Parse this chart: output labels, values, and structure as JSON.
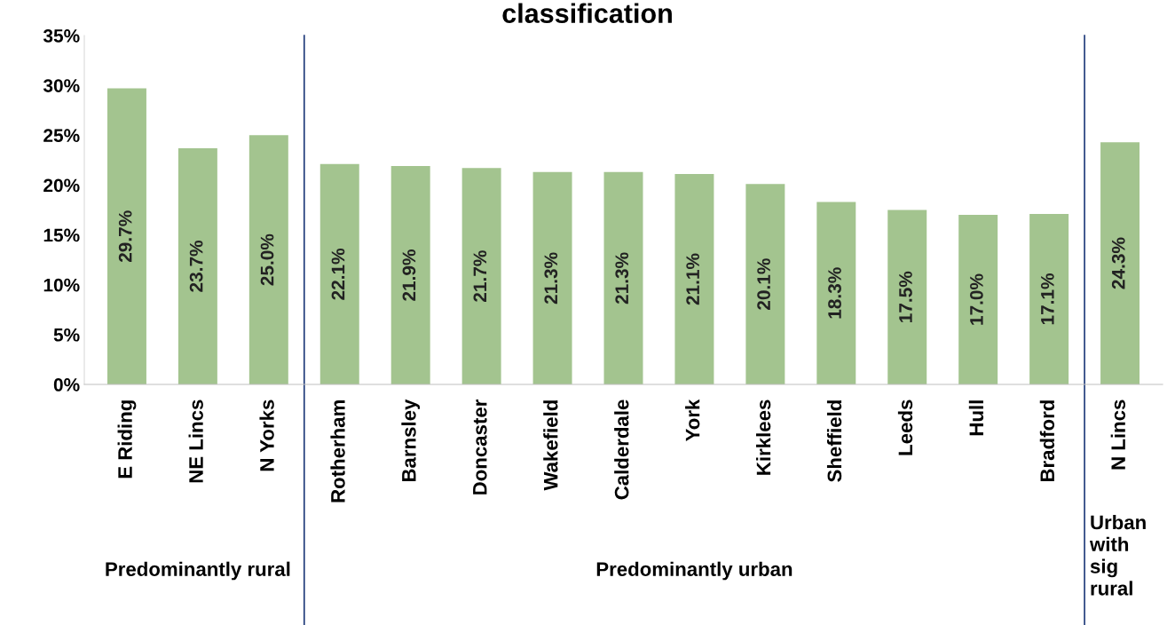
{
  "chart_data": {
    "type": "bar",
    "title": "classification",
    "categories": [
      "E Riding",
      "NE Lincs",
      "N Yorks",
      "Rotherham",
      "Barnsley",
      "Doncaster",
      "Wakefield",
      "Calderdale",
      "York",
      "Kirklees",
      "Sheffield",
      "Leeds",
      "Hull",
      "Bradford",
      "N Lincs"
    ],
    "values": [
      29.7,
      23.7,
      25.0,
      22.1,
      21.9,
      21.7,
      21.3,
      21.3,
      21.1,
      20.1,
      18.3,
      17.5,
      17.0,
      17.1,
      24.3
    ],
    "value_labels": [
      "29.7%",
      "23.7%",
      "25.0%",
      "22.1%",
      "21.9%",
      "21.7%",
      "21.3%",
      "21.3%",
      "21.1%",
      "20.1%",
      "18.3%",
      "17.5%",
      "17.0%",
      "17.1%",
      "24.3%"
    ],
    "color": "#a3c48f",
    "ylim": [
      0,
      35
    ],
    "yticks": [
      {
        "value": 0,
        "label": "0%"
      },
      {
        "value": 5,
        "label": "5%"
      },
      {
        "value": 10,
        "label": "10%"
      },
      {
        "value": 15,
        "label": "15%"
      },
      {
        "value": 20,
        "label": "20%"
      },
      {
        "value": 25,
        "label": "25%"
      },
      {
        "value": 30,
        "label": "30%"
      },
      {
        "value": 35,
        "label": "35%"
      }
    ],
    "grid": false,
    "annotations": [
      "Predominantly rural",
      "Predominantly urban",
      "Urban\nwith\nsig\nrural"
    ]
  }
}
